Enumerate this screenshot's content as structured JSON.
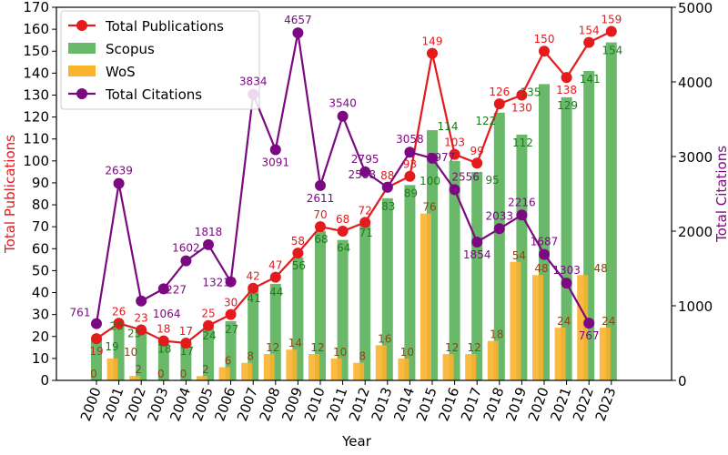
{
  "chart_data": {
    "type": "bar+line",
    "xlabel": "Year",
    "ylabel_left": "Total Publications",
    "ylabel_right": "Total Citations",
    "ylim_left": [
      0,
      170
    ],
    "ylim_right": [
      0,
      5000
    ],
    "yticks_left": [
      0,
      10,
      20,
      30,
      40,
      50,
      60,
      70,
      80,
      90,
      100,
      110,
      120,
      130,
      140,
      150,
      160,
      170
    ],
    "yticks_right": [
      0,
      1000,
      2000,
      3000,
      4000,
      5000
    ],
    "categories": [
      "2000",
      "2001",
      "2002",
      "2003",
      "2004",
      "2005",
      "2006",
      "2007",
      "2008",
      "2009",
      "2010",
      "2011",
      "2012",
      "2013",
      "2014",
      "2015",
      "2016",
      "2017",
      "2018",
      "2019",
      "2020",
      "2021",
      "2022",
      "2023"
    ],
    "legend_position": "top-left",
    "series": [
      {
        "name": "Total Publications",
        "type": "line",
        "axis": "left",
        "color": "#e41a1c",
        "values": [
          19,
          26,
          23,
          18,
          17,
          25,
          30,
          42,
          47,
          58,
          70,
          68,
          72,
          88,
          93,
          149,
          103,
          99,
          126,
          130,
          150,
          138,
          154,
          159
        ]
      },
      {
        "name": "Scopus",
        "type": "bar",
        "axis": "left",
        "color": "#6ab86a",
        "values": [
          19,
          25,
          23,
          18,
          17,
          24,
          27,
          41,
          44,
          56,
          68,
          64,
          71,
          83,
          89,
          114,
          100,
          95,
          122,
          112,
          135,
          129,
          141,
          154
        ]
      },
      {
        "name": "WoS",
        "type": "bar",
        "axis": "left",
        "color": "#fbb22c",
        "values": [
          0,
          10,
          2,
          0,
          0,
          2,
          6,
          8,
          12,
          14,
          12,
          10,
          8,
          16,
          10,
          76,
          12,
          12,
          18,
          54,
          48,
          24,
          48,
          24
        ]
      },
      {
        "name": "Total Citations",
        "type": "line",
        "axis": "right",
        "color": "#7b0a82",
        "values": [
          761,
          2639,
          1064,
          1227,
          1602,
          1818,
          1321,
          3834,
          3091,
          4657,
          2611,
          3540,
          2795,
          2588,
          3058,
          2977,
          2556,
          1854,
          2033,
          2216,
          1687,
          1303,
          767,
          null
        ]
      }
    ]
  }
}
